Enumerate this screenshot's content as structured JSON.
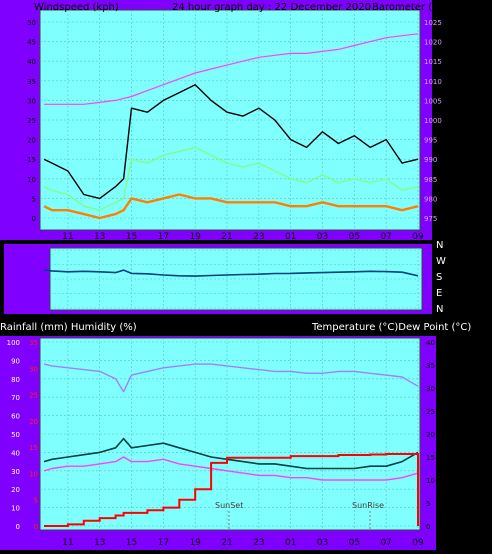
{
  "panel1": {
    "title_left": "Windspeed (kph)",
    "title_center": "24 hour graph day : 22 December 2020",
    "title_right": "Barometer (hpa)"
  },
  "panel2": {
    "directions": [
      "N",
      "W",
      "S",
      "E",
      "N"
    ]
  },
  "panel3": {
    "title_left": "Rainfall (mm)  Humidity (%)",
    "title_right": "Temperature (°C)Dew Point (°C)",
    "sunset_label": "SunSet",
    "sunrise_label": "SunRise"
  },
  "colors": {
    "plot_bg": "#80ffff",
    "frame_bg": "#8000ff",
    "wind_gust": "#000000",
    "wind_avg": "#80ff80",
    "wind_low": "#ff8000",
    "pressure": "#ff40ff",
    "direction": "#004080",
    "humidity": "#a080ff",
    "temperature": "#004040",
    "dewpoint": "#ff40ff",
    "rain": "#ff0000"
  },
  "chart_data": [
    {
      "type": "line",
      "x_ticks": [
        "11",
        "13",
        "15",
        "17",
        "19",
        "21",
        "23",
        "01",
        "03",
        "05",
        "07",
        "09"
      ],
      "y_left_ticks": [
        "0",
        "5",
        "10",
        "15",
        "20",
        "25",
        "30",
        "35",
        "40",
        "45",
        "50"
      ],
      "y_right_ticks": [
        "975",
        "980",
        "985",
        "990",
        "995",
        "1000",
        "1005",
        "1010",
        "1015",
        "1020",
        "1025"
      ],
      "ylim_left": [
        0,
        50
      ],
      "ylim_right": [
        975,
        1025
      ],
      "x_hours": [
        9.5,
        10,
        11,
        12,
        13,
        14,
        14.5,
        15,
        16,
        17,
        18,
        19,
        20,
        21,
        22,
        23,
        24,
        25,
        26,
        27,
        28,
        29,
        30,
        31,
        32,
        33
      ],
      "series": [
        {
          "key": "gust",
          "values": [
            15,
            14,
            12,
            6,
            5,
            8,
            10,
            28,
            27,
            30,
            32,
            34,
            30,
            27,
            26,
            28,
            25,
            20,
            18,
            22,
            19,
            21,
            18,
            20,
            14,
            15
          ]
        },
        {
          "key": "avg",
          "values": [
            8,
            7,
            6,
            3,
            2,
            4,
            5,
            15,
            14,
            16,
            17,
            18,
            16,
            14,
            13,
            14,
            12,
            10,
            9,
            11,
            9,
            10,
            9,
            10,
            7,
            8
          ]
        },
        {
          "key": "low",
          "values": [
            3,
            2,
            2,
            1,
            0,
            1,
            2,
            5,
            4,
            5,
            6,
            5,
            5,
            4,
            4,
            4,
            4,
            3,
            3,
            4,
            3,
            3,
            3,
            3,
            2,
            3
          ]
        },
        {
          "key": "pressure",
          "values": [
            1004,
            1004,
            1004,
            1004,
            1004.5,
            1005,
            1005.5,
            1006,
            1007.5,
            1009,
            1010.5,
            1012,
            1013,
            1014,
            1015,
            1016,
            1016.5,
            1017,
            1017,
            1017.5,
            1018,
            1019,
            1020,
            1021,
            1021.5,
            1022
          ]
        }
      ]
    },
    {
      "type": "line",
      "x_hours": [
        9.5,
        10,
        11,
        12,
        13,
        14,
        14.5,
        15,
        16,
        17,
        18,
        19,
        20,
        21,
        22,
        23,
        24,
        25,
        26,
        27,
        28,
        29,
        30,
        31,
        32,
        33
      ],
      "series": [
        {
          "key": "direction_deg",
          "values": [
            235,
            230,
            225,
            228,
            225,
            220,
            235,
            215,
            212,
            205,
            200,
            198,
            202,
            205,
            208,
            210,
            214,
            215,
            218,
            220,
            222,
            225,
            228,
            226,
            222,
            200
          ]
        }
      ],
      "ylim": [
        0,
        360
      ]
    },
    {
      "type": "line",
      "x_ticks": [
        "11",
        "13",
        "15",
        "17",
        "19",
        "21",
        "23",
        "01",
        "03",
        "05",
        "07",
        "09"
      ],
      "y_left_ticks": [
        "0",
        "10",
        "20",
        "30",
        "40",
        "50",
        "60",
        "70",
        "80",
        "90",
        "100"
      ],
      "y_rain_ticks": [
        "0",
        "5",
        "10",
        "15",
        "20",
        "25",
        "30",
        "35"
      ],
      "y_right_ticks": [
        "0",
        "5",
        "10",
        "15",
        "20",
        "25",
        "30",
        "35",
        "40"
      ],
      "ylim_left": [
        0,
        100
      ],
      "ylim_rain": [
        0,
        35
      ],
      "ylim_right": [
        0,
        40
      ],
      "x_hours": [
        9.5,
        10,
        11,
        12,
        13,
        14,
        14.5,
        15,
        16,
        17,
        18,
        19,
        20,
        21,
        22,
        23,
        24,
        25,
        26,
        27,
        28,
        29,
        30,
        31,
        32,
        33
      ],
      "series": [
        {
          "key": "humidity",
          "values": [
            88,
            87,
            86,
            85,
            84,
            80,
            73,
            82,
            84,
            86,
            87,
            88,
            88,
            87,
            86,
            85,
            84,
            84,
            83,
            83,
            84,
            84,
            83,
            82,
            81,
            76
          ]
        },
        {
          "key": "temperature",
          "values": [
            14,
            14.5,
            15,
            15.5,
            16,
            17,
            19,
            17,
            17.5,
            18,
            17,
            16,
            15,
            14.5,
            14,
            13.5,
            13.5,
            13,
            12.5,
            12.5,
            12.5,
            12.5,
            13,
            13,
            14,
            16
          ]
        },
        {
          "key": "dewpoint",
          "values": [
            12,
            12.5,
            13,
            13,
            13.5,
            14,
            15,
            14,
            14,
            14.5,
            13.5,
            13,
            12.5,
            12,
            11.5,
            11,
            11,
            10.5,
            10.5,
            10,
            10,
            10,
            10,
            10,
            10.5,
            11.5
          ]
        },
        {
          "key": "rain",
          "values": [
            0,
            0,
            0.3,
            1,
            1.5,
            2,
            2.5,
            2.5,
            3,
            3.5,
            5,
            7,
            12,
            13,
            13,
            13,
            13,
            13.3,
            13.3,
            13.3,
            13.5,
            13.5,
            13.6,
            13.7,
            13.7,
            0
          ]
        }
      ]
    }
  ]
}
